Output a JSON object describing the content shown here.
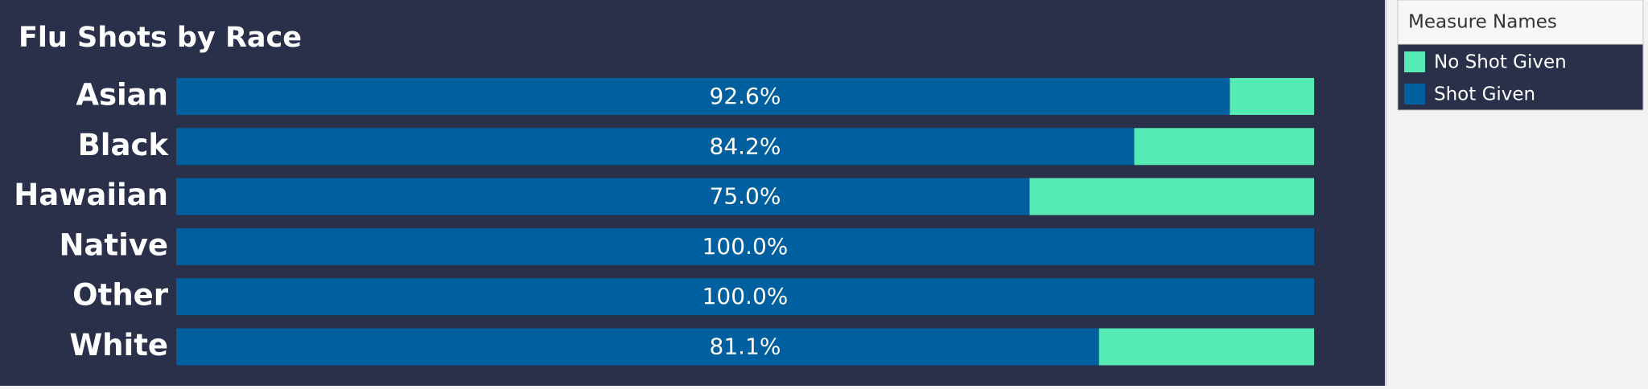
{
  "chart_data": {
    "type": "stacked-bar-horizontal",
    "title": "Flu Shots by Race",
    "categories": [
      "Asian",
      "Black",
      "Hawaiian",
      "Native",
      "Other",
      "White"
    ],
    "legend_title": "Measure Names",
    "series": [
      {
        "name": "No Shot Given",
        "color": "#56ebb4",
        "values": [
          7.4,
          15.8,
          25.0,
          0,
          0,
          18.9
        ]
      },
      {
        "name": "Shot Given",
        "color": "#005f9e",
        "values": [
          92.6,
          84.2,
          75.0,
          100.0,
          100.0,
          81.1
        ],
        "value_labels": [
          "92.6%",
          "84.2%",
          "75.0%",
          "100.0%",
          "100.0%",
          "81.1%"
        ]
      }
    ]
  }
}
